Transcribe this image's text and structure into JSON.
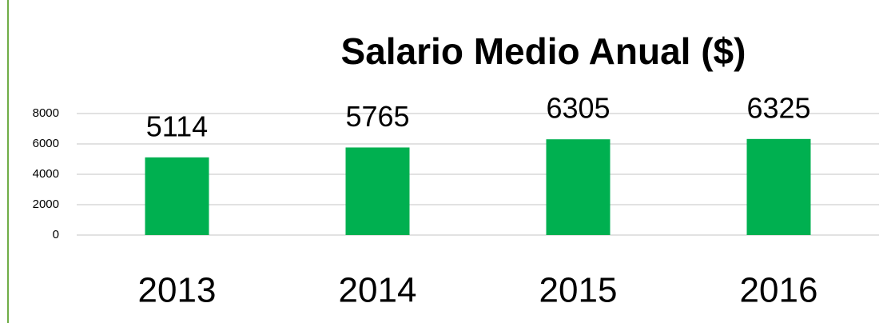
{
  "chart_data": {
    "type": "bar",
    "title": "Salario Medio Anual ($)",
    "categories": [
      "2013",
      "2014",
      "2015",
      "2016"
    ],
    "values": [
      5114,
      5765,
      6305,
      6325
    ],
    "color": "#00b050",
    "ylim": [
      0,
      8000
    ],
    "yticks": [
      0,
      2000,
      4000,
      6000,
      8000
    ],
    "grid": true
  }
}
